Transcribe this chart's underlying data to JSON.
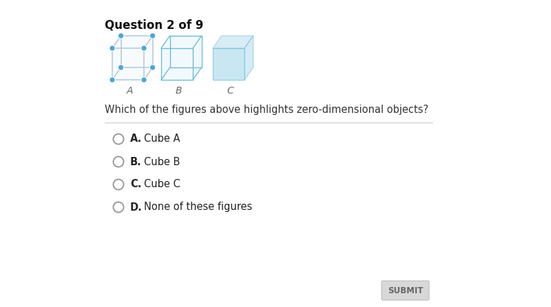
{
  "title": "Question 2 of 9",
  "question": "Which of the figures above highlights zero-dimensional objects?",
  "options": [
    {
      "letter": "A.",
      "text": "Cube A"
    },
    {
      "letter": "B.",
      "text": "Cube B"
    },
    {
      "letter": "C.",
      "text": "Cube C"
    },
    {
      "letter": "D.",
      "text": "None of these figures"
    }
  ],
  "cube_labels": [
    "A",
    "B",
    "C"
  ],
  "cube_face_color": "#b8dff0",
  "cube_edge_color_A": "#b0c8d8",
  "cube_edge_color_B": "#6bbbd8",
  "cube_edge_color_C": "#6bbbd8",
  "cube_dot_color": "#4da6d9",
  "background_color": "#ffffff",
  "submit_button_color": "#d8d8d8",
  "submit_text_color": "#666666",
  "submit_text": "SUBMIT",
  "title_color": "#111111",
  "question_color": "#333333",
  "option_text_color": "#222222",
  "divider_color": "#cccccc",
  "radio_color": "#999999"
}
